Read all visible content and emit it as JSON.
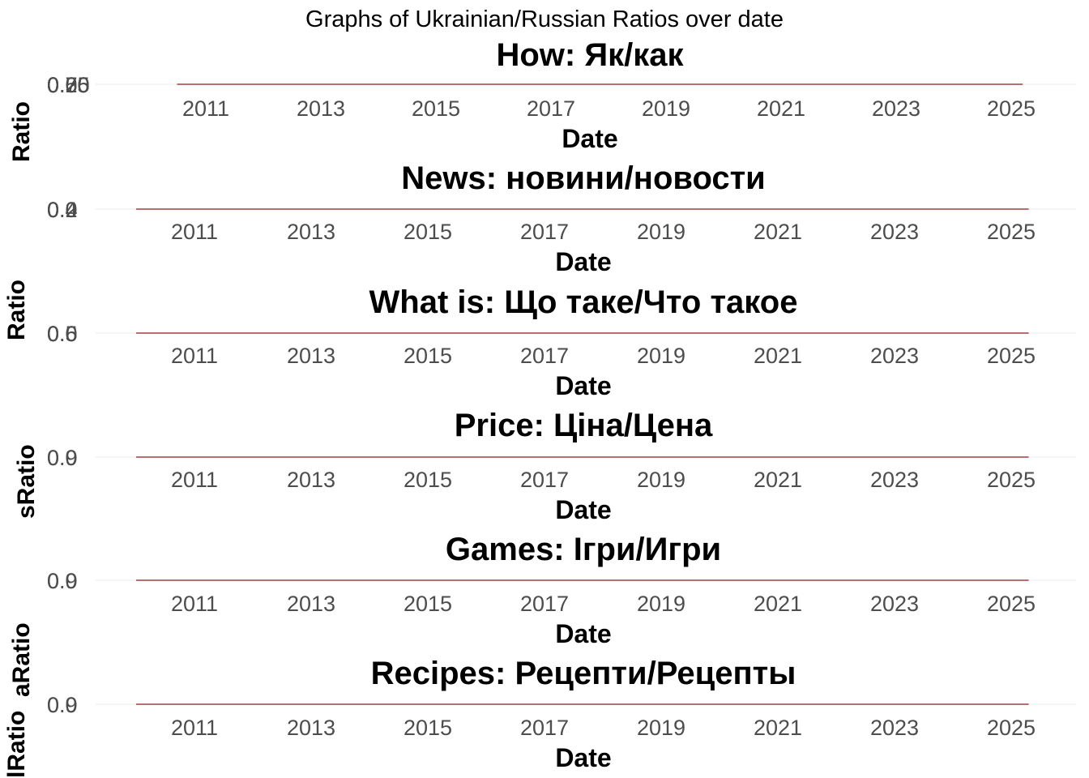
{
  "figure": {
    "title": "Graphs of Ukrainian/Russian Ratios over date",
    "side_label_fragments": [
      "lRatio",
      "aRatio",
      "sRatio",
      "Ratio",
      "Ratio"
    ]
  },
  "colors": {
    "line": "#8b1a1a",
    "grid": "#ebebeb",
    "tick_text": "#4d4d4d",
    "title_text": "#000000"
  },
  "chart_data": [
    {
      "type": "line",
      "title": "How: Як/как",
      "xlabel": "Date",
      "ylabel": "",
      "x_ticks": [
        "2011",
        "2013",
        "2015",
        "2017",
        "2019",
        "2021",
        "2023",
        "2025"
      ],
      "y_tick_overlaps": [
        "0.75",
        "0.50",
        "0.25",
        "0.00"
      ],
      "xlim": [
        2010,
        2025.5
      ],
      "grid": true,
      "series": [
        {
          "x": [
            2010.5,
            2025.2
          ],
          "y": [
            0,
            0
          ]
        }
      ]
    },
    {
      "type": "line",
      "title": "News: новини/новости",
      "xlabel": "Date",
      "ylabel": "",
      "x_ticks": [
        "2011",
        "2013",
        "2015",
        "2017",
        "2019",
        "2021",
        "2023",
        "2025"
      ],
      "y_tick_overlaps": [
        "0.4",
        "0.2",
        "0.0"
      ],
      "xlim": [
        2010,
        2025.5
      ],
      "grid": true,
      "series": [
        {
          "x": [
            2010,
            2025.3
          ],
          "y": [
            0,
            0
          ]
        }
      ]
    },
    {
      "type": "line",
      "title": "What is: Що таке/Что такое",
      "xlabel": "Date",
      "ylabel": "",
      "x_ticks": [
        "2011",
        "2013",
        "2015",
        "2017",
        "2019",
        "2021",
        "2023",
        "2025"
      ],
      "y_tick_overlaps": [
        "0.6",
        "0.5",
        "0.0"
      ],
      "xlim": [
        2010,
        2025.5
      ],
      "grid": true,
      "series": [
        {
          "x": [
            2010,
            2025.3
          ],
          "y": [
            0,
            0
          ]
        }
      ]
    },
    {
      "type": "line",
      "title": "Price: Ціна/Цена",
      "xlabel": "Date",
      "ylabel": "",
      "x_ticks": [
        "2011",
        "2013",
        "2015",
        "2017",
        "2019",
        "2021",
        "2023",
        "2025"
      ],
      "y_tick_overlaps": [
        "0.9",
        "0.0"
      ],
      "xlim": [
        2010,
        2025.5
      ],
      "grid": true,
      "series": [
        {
          "x": [
            2010,
            2025.3
          ],
          "y": [
            0,
            0
          ]
        }
      ]
    },
    {
      "type": "line",
      "title": "Games: Ігри/Игри",
      "xlabel": "Date",
      "ylabel": "",
      "x_ticks": [
        "2011",
        "2013",
        "2015",
        "2017",
        "2019",
        "2021",
        "2023",
        "2025"
      ],
      "y_tick_overlaps": [
        "0.9",
        "0.0"
      ],
      "xlim": [
        2010,
        2025.5
      ],
      "grid": true,
      "series": [
        {
          "x": [
            2010,
            2025.3
          ],
          "y": [
            0,
            0
          ]
        }
      ]
    },
    {
      "type": "line",
      "title": "Recipes: Рецепти/Рецепты",
      "xlabel": "Date",
      "ylabel": "",
      "x_ticks": [
        "2011",
        "2013",
        "2015",
        "2017",
        "2019",
        "2021",
        "2023",
        "2025"
      ],
      "y_tick_overlaps": [
        "0.9",
        "0.0"
      ],
      "xlim": [
        2010,
        2025.5
      ],
      "grid": true,
      "series": [
        {
          "x": [
            2010,
            2025.3
          ],
          "y": [
            0,
            0
          ]
        }
      ]
    }
  ]
}
